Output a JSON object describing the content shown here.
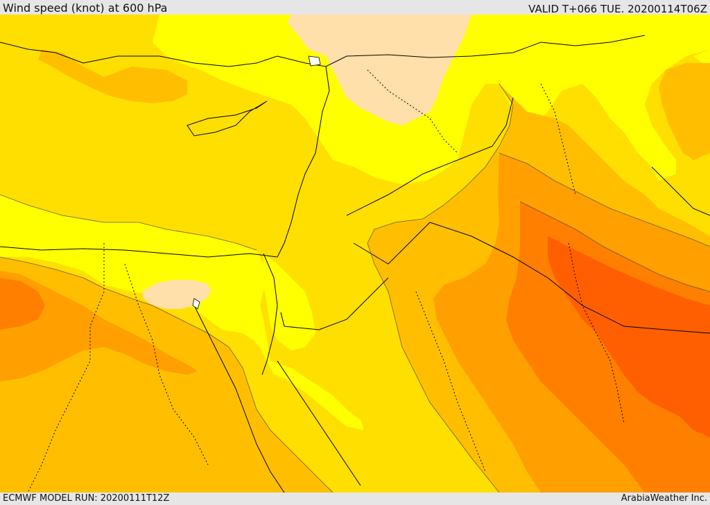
{
  "header": {
    "title": "Wind speed (knot) at 600 hPa",
    "valid_time": "VALID T+066 TUE. 20200114T06Z"
  },
  "footer": {
    "model_run": "ECMWF MODEL RUN: 20200111T12Z",
    "credit": "ArabiaWeather Inc."
  },
  "map": {
    "field": "wind-speed",
    "fill_colors": {
      "band_0": "#ffdfaa",
      "band_1": "#ffff00",
      "band_2": "#ffdf00",
      "band_3": "#ffbf00",
      "band_4": "#ff9f00",
      "band_5": "#ff7f00",
      "band_6": "#ff5f00",
      "land_water": "#ffffff"
    }
  }
}
